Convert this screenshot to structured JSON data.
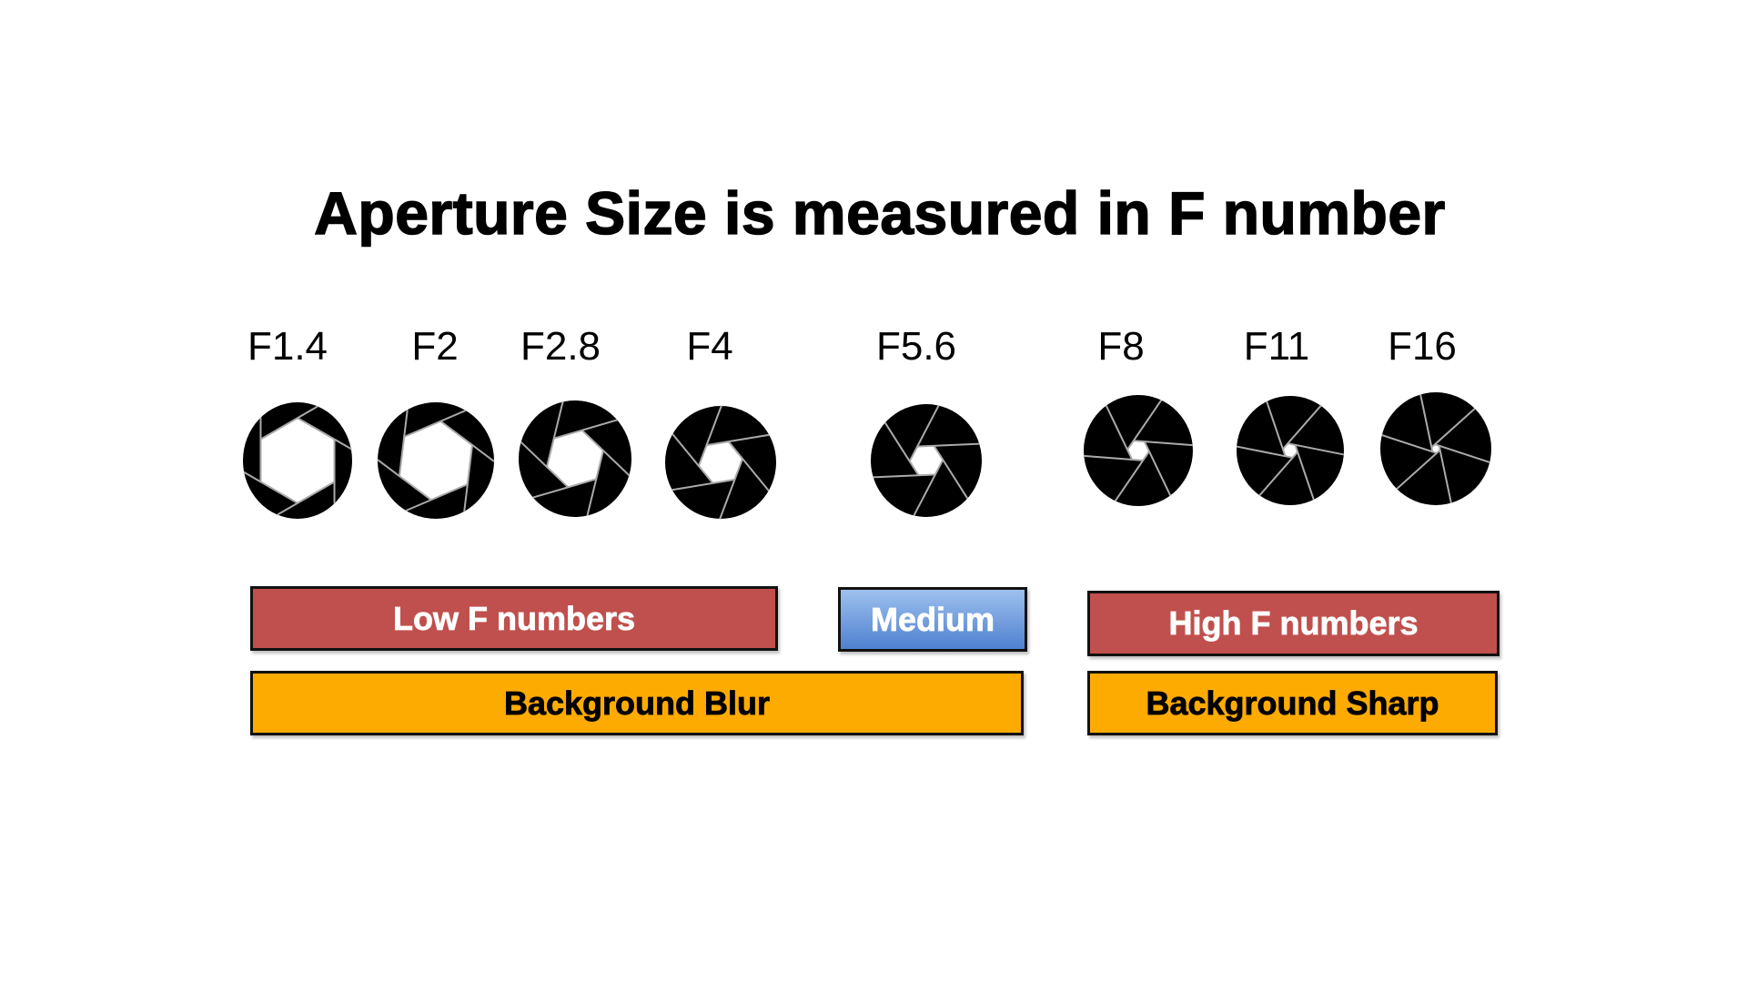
{
  "title": "Aperture Size is measured in F number",
  "apertures": [
    {
      "label": "F1.4",
      "opening": 0.78
    },
    {
      "label": "F2",
      "opening": 0.68
    },
    {
      "label": "F2.8",
      "opening": 0.52
    },
    {
      "label": "F4",
      "opening": 0.4
    },
    {
      "label": "F5.6",
      "opening": 0.3
    },
    {
      "label": "F8",
      "opening": 0.2
    },
    {
      "label": "F11",
      "opening": 0.14
    },
    {
      "label": "F16",
      "opening": 0.08
    }
  ],
  "boxes": {
    "low": "Low F numbers",
    "medium": "Medium",
    "high": "High F numbers",
    "blur": "Background Blur",
    "sharp": "Background Sharp"
  },
  "colors": {
    "low_high": "#c0504d",
    "medium": "#4f81d0",
    "background": "#fdab00"
  }
}
